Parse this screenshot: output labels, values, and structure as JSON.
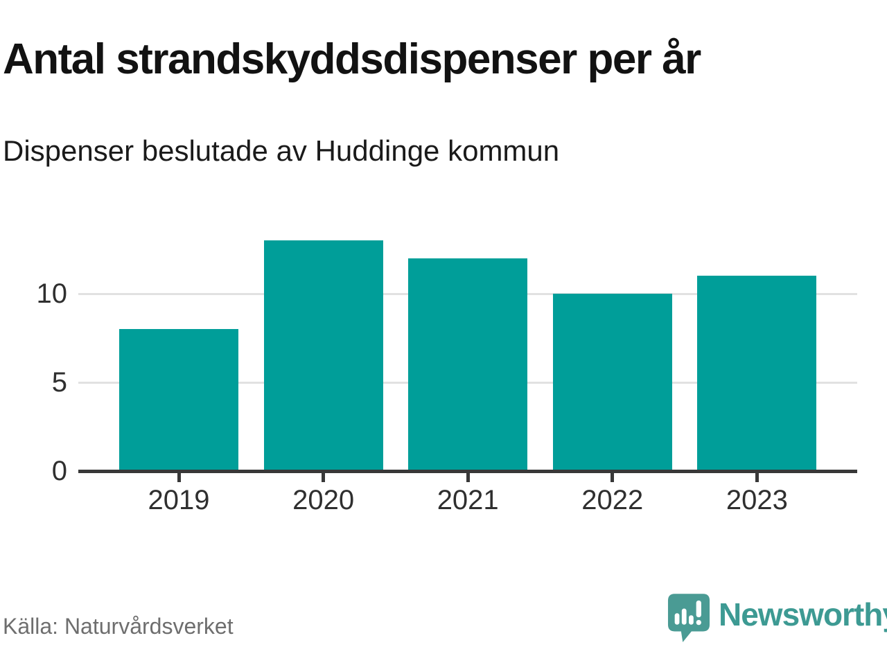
{
  "header": {
    "title": "Antal strandskyddsdispenser per år",
    "subtitle": "Dispenser beslutade av Huddinge kommun"
  },
  "chart_data": {
    "type": "bar",
    "title": "Antal strandskyddsdispenser per år",
    "subtitle": "Dispenser beslutade av Huddinge kommun",
    "categories": [
      "2019",
      "2020",
      "2021",
      "2022",
      "2023"
    ],
    "values": [
      8,
      13,
      12,
      10,
      11
    ],
    "yticks": [
      0,
      5,
      10
    ],
    "ylim": [
      0,
      13.5
    ],
    "xlabel": "",
    "ylabel": "",
    "grid": "horizontal-only",
    "legend": "none",
    "bar_color": "#009e99",
    "axis_color": "#383838",
    "gridline_color": "#e1e1e1",
    "tick_label_color": "#2f2f2f"
  },
  "footer": {
    "source": "Källa: Naturvårdsverket",
    "brand": "Newsworthy",
    "brand_color": "#3d9a93",
    "logo_icon": "speech-bubble-bar-chart-exclamation"
  }
}
